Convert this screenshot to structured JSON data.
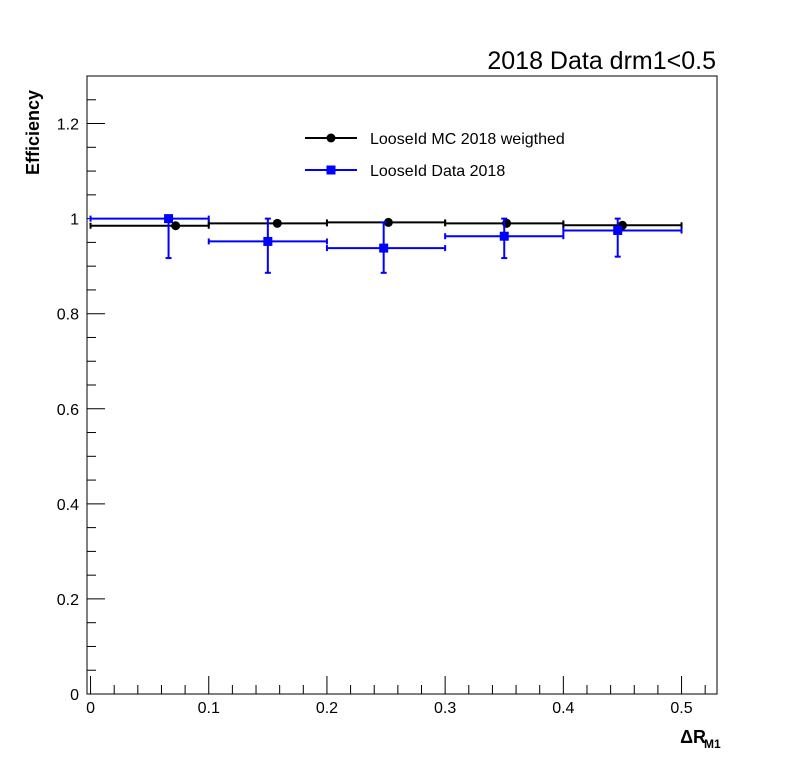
{
  "chart_data": {
    "type": "scatter",
    "title": "2018 Data drm1<0.5",
    "xlabel": "ΔR",
    "xlabel_subscript": "M1",
    "ylabel": "Efficiency",
    "xlim": [
      -0.003,
      0.53
    ],
    "ylim": [
      0,
      1.3
    ],
    "x_ticks": [
      0,
      0.1,
      0.2,
      0.3,
      0.4,
      0.5
    ],
    "y_ticks": [
      0,
      0.2,
      0.4,
      0.6,
      0.8,
      1,
      1.2
    ],
    "x_tick_labels": [
      "0",
      "0.1",
      "0.2",
      "0.3",
      "0.4",
      "0.5"
    ],
    "y_tick_labels": [
      "0",
      "0.2",
      "0.4",
      "0.6",
      "0.8",
      "1",
      "1.2"
    ],
    "grid": false,
    "legend_position": "top-center",
    "series": [
      {
        "name": "LooseId MC 2018 weigthed",
        "color": "#000000",
        "marker": "circle",
        "points": [
          {
            "x": 0.072,
            "y": 0.985,
            "xlo": 0.0,
            "xhi": 0.1,
            "ylo": 0.985,
            "yhi": 0.985
          },
          {
            "x": 0.158,
            "y": 0.99,
            "xlo": 0.1,
            "xhi": 0.2,
            "ylo": 0.99,
            "yhi": 0.99
          },
          {
            "x": 0.252,
            "y": 0.992,
            "xlo": 0.2,
            "xhi": 0.3,
            "ylo": 0.992,
            "yhi": 0.992
          },
          {
            "x": 0.352,
            "y": 0.99,
            "xlo": 0.3,
            "xhi": 0.4,
            "ylo": 0.99,
            "yhi": 0.99
          },
          {
            "x": 0.45,
            "y": 0.986,
            "xlo": 0.4,
            "xhi": 0.5,
            "ylo": 0.986,
            "yhi": 0.986
          }
        ]
      },
      {
        "name": "LooseId Data 2018",
        "color": "#0000ff",
        "marker": "square",
        "points": [
          {
            "x": 0.066,
            "y": 1.0,
            "xlo": 0.0,
            "xhi": 0.1,
            "ylo": 0.917,
            "yhi": 1.0
          },
          {
            "x": 0.15,
            "y": 0.952,
            "xlo": 0.1,
            "xhi": 0.2,
            "ylo": 0.886,
            "yhi": 1.0
          },
          {
            "x": 0.248,
            "y": 0.938,
            "xlo": 0.2,
            "xhi": 0.3,
            "ylo": 0.886,
            "yhi": 0.992
          },
          {
            "x": 0.35,
            "y": 0.963,
            "xlo": 0.3,
            "xhi": 0.4,
            "ylo": 0.917,
            "yhi": 1.0
          },
          {
            "x": 0.446,
            "y": 0.975,
            "xlo": 0.4,
            "xhi": 0.5,
            "ylo": 0.92,
            "yhi": 1.0
          }
        ]
      }
    ]
  }
}
